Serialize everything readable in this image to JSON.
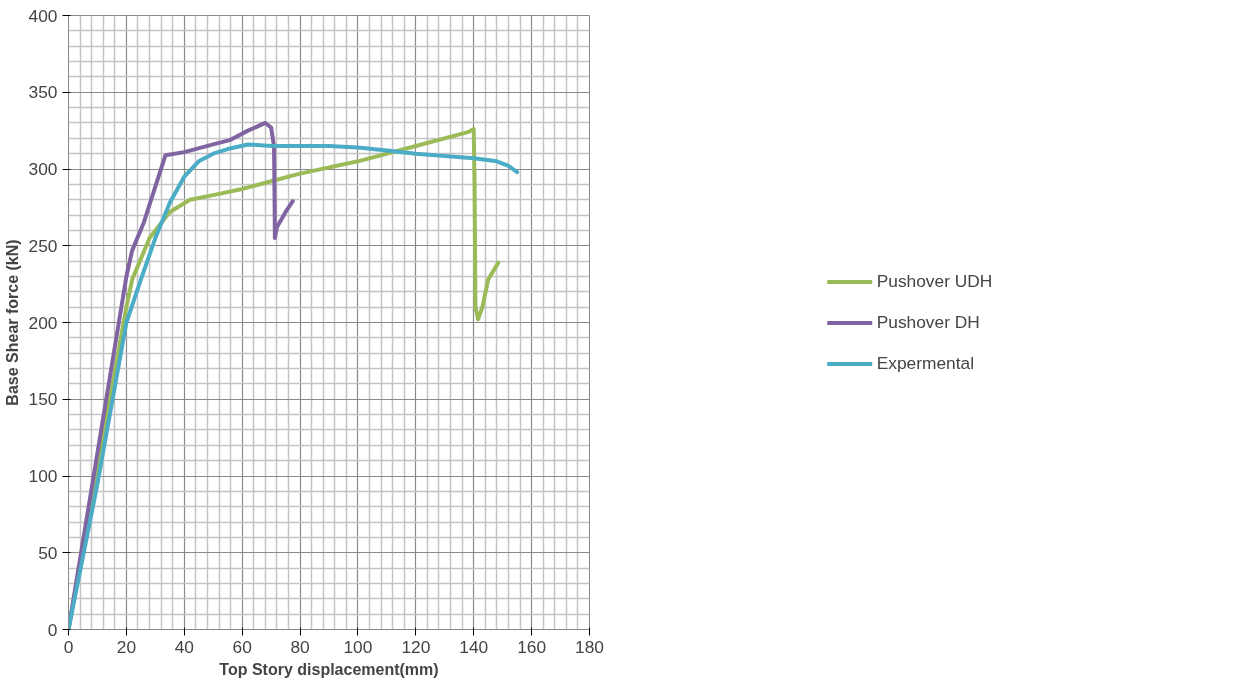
{
  "chart_data": {
    "type": "line",
    "xlabel": "Top Story displacement(mm)",
    "ylabel": "Base Shear force (kN)",
    "xlim": [
      0,
      180
    ],
    "ylim": [
      0,
      400
    ],
    "xticks": [
      0,
      20,
      40,
      60,
      80,
      100,
      120,
      140,
      160,
      180
    ],
    "yticks": [
      0,
      50,
      100,
      150,
      200,
      250,
      300,
      350,
      400
    ],
    "grid": true,
    "legend": "right",
    "marker": "none",
    "line_style": "solid",
    "series": [
      {
        "name": "Pushover UDH",
        "color": "#9bbb59",
        "x": [
          0,
          20,
          22,
          28,
          35,
          42,
          50,
          60,
          70,
          80,
          100,
          120,
          138,
          140,
          140.3,
          140.6,
          141.5,
          143,
          145,
          148.5
        ],
        "values": [
          0,
          210,
          228,
          255,
          272,
          280,
          283,
          287,
          292,
          297,
          305,
          315,
          324,
          326,
          290,
          210,
          202,
          210,
          228,
          239
        ]
      },
      {
        "name": "Pushover DH",
        "color": "#8064a2",
        "x": [
          0,
          20,
          22,
          26,
          33.5,
          40,
          50,
          56,
          62,
          68,
          70,
          71,
          71.2,
          71.3,
          72,
          75,
          77.5
        ],
        "values": [
          0,
          230,
          247,
          265,
          309,
          311,
          316,
          319,
          325,
          330,
          327,
          315,
          280,
          255,
          262,
          272,
          279
        ]
      },
      {
        "name": "Expermental",
        "color": "#4bacc6",
        "x": [
          0,
          10,
          20,
          25,
          30,
          35,
          40,
          45,
          50,
          55,
          62,
          70,
          90,
          100,
          110,
          120,
          140,
          148,
          152,
          155
        ],
        "values": [
          0,
          95,
          200,
          228,
          255,
          278,
          295,
          305,
          310,
          313,
          316,
          315,
          315,
          314,
          312,
          310,
          307,
          305,
          302,
          298
        ]
      }
    ]
  }
}
